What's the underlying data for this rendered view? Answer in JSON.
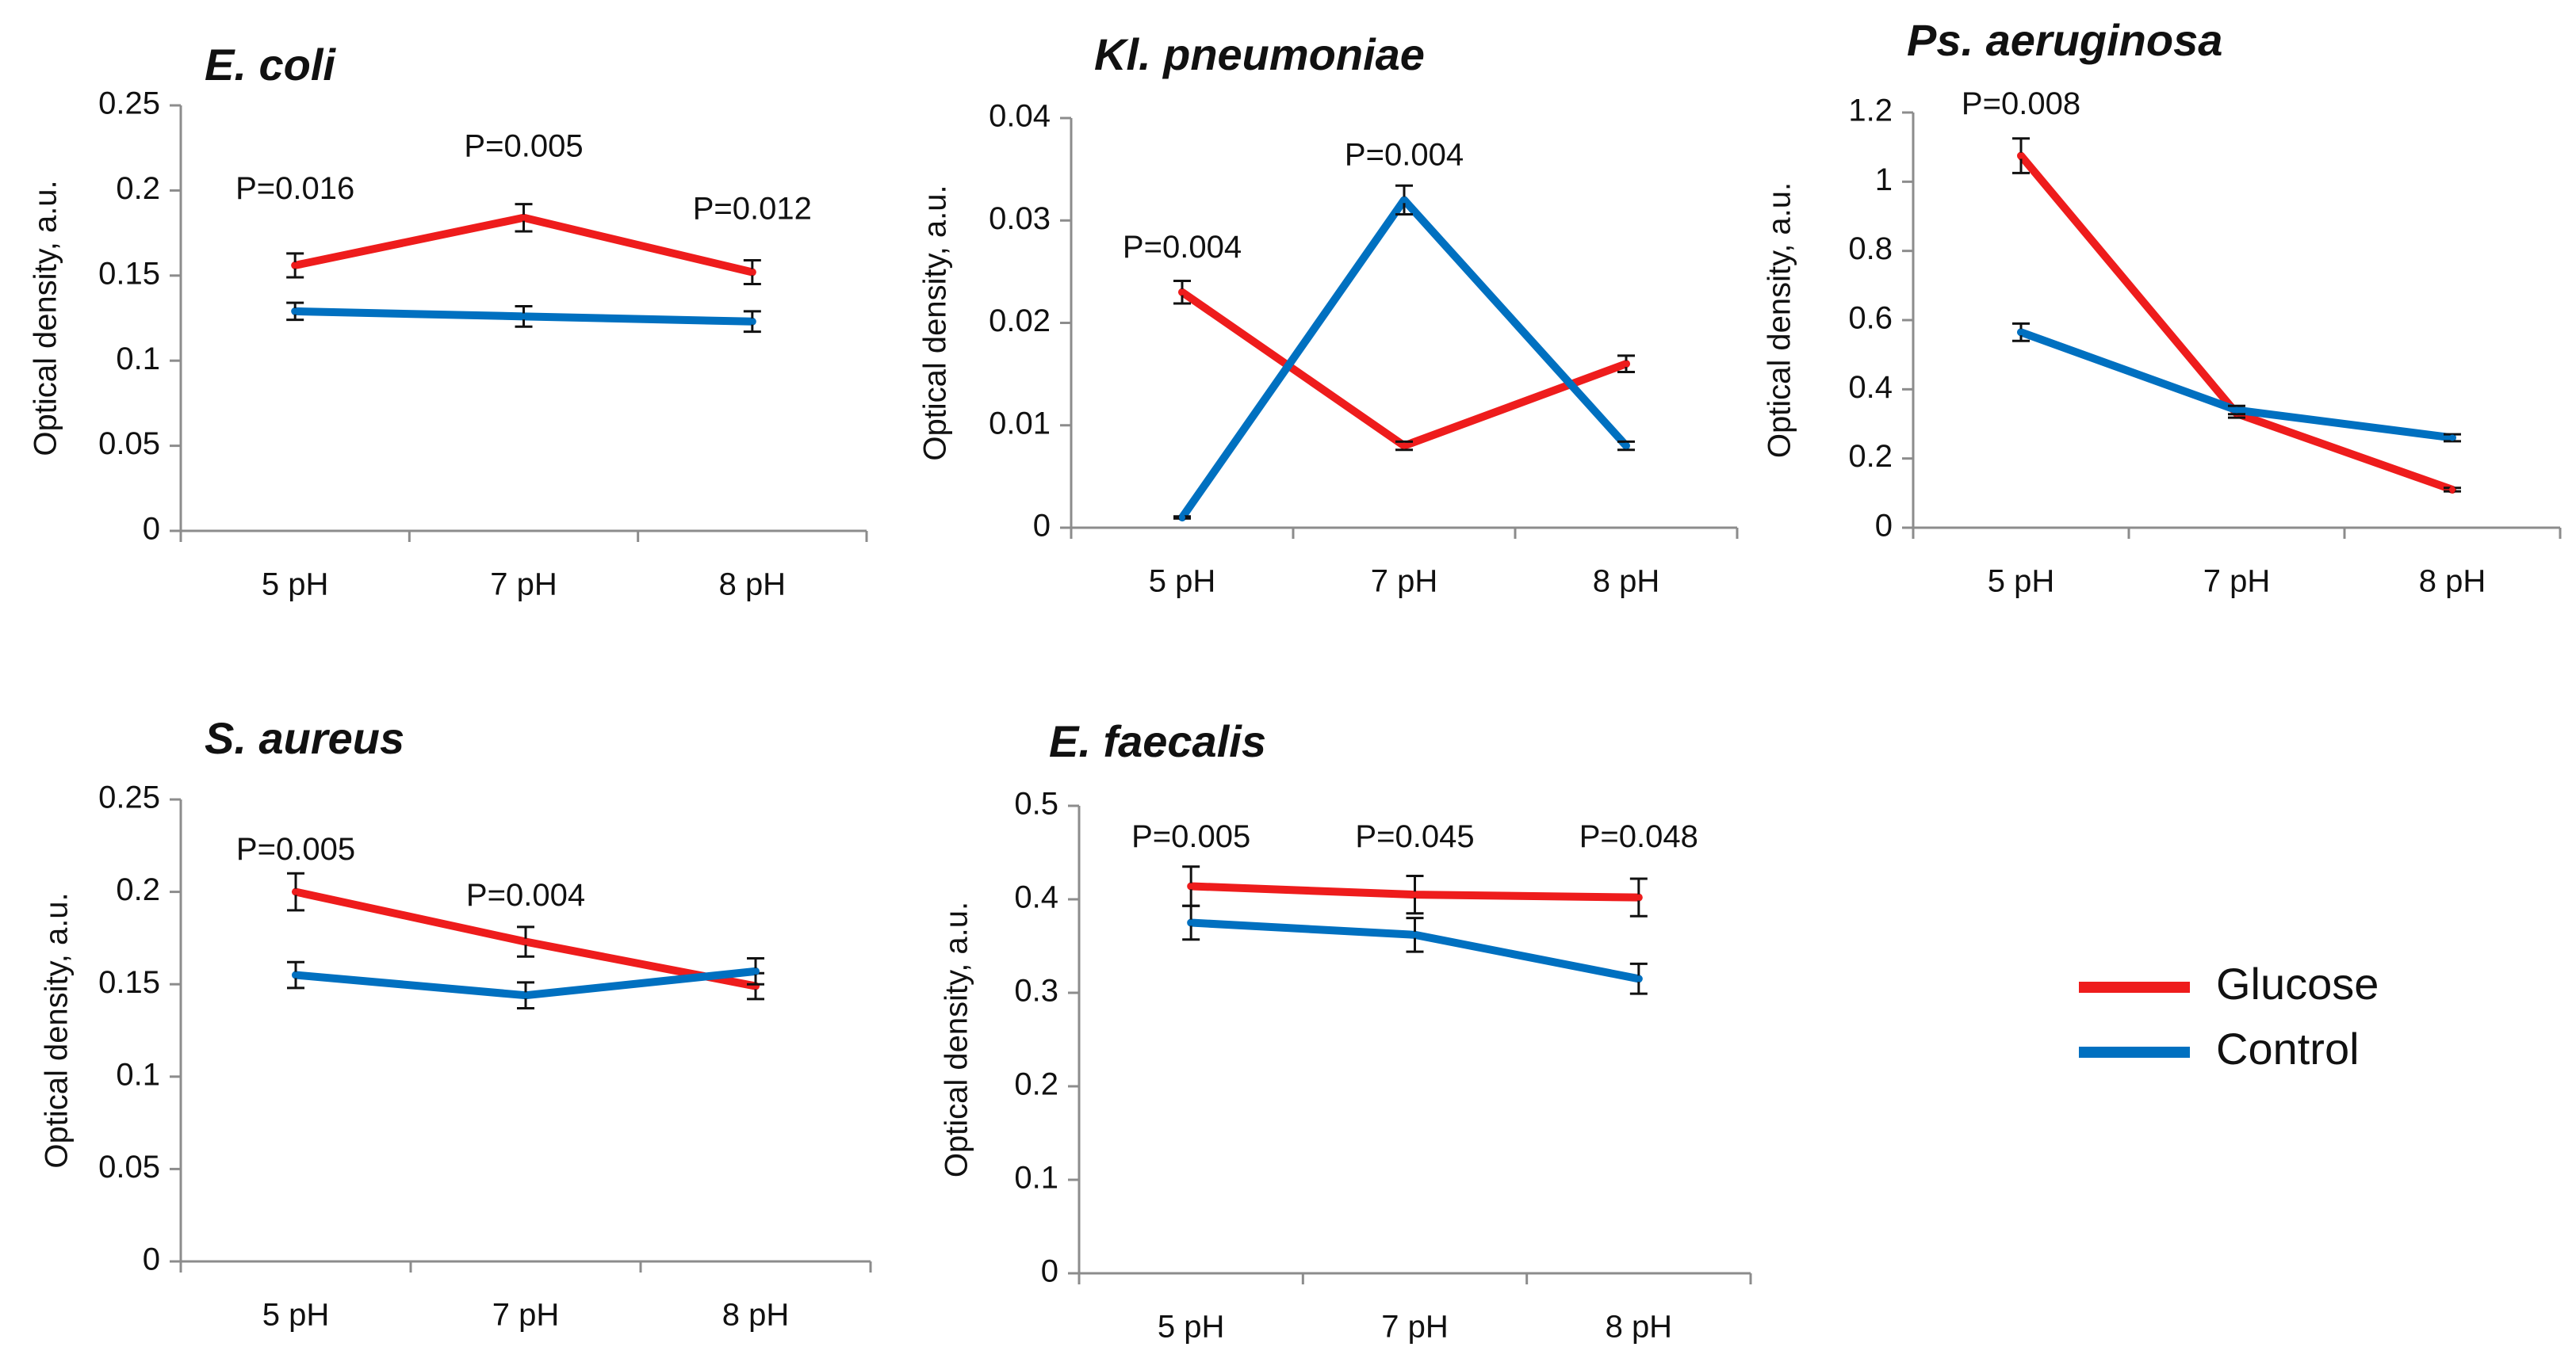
{
  "colors": {
    "glucose": "#ee1c1c",
    "control": "#0070c0",
    "axis": "#8c8c8c",
    "errorbar": "#111111"
  },
  "legend": {
    "glucose_label": "Glucose",
    "control_label": "Control"
  },
  "chart_data": [
    {
      "type": "line",
      "title": "E. coli",
      "ylabel": "Optical density, a.u.",
      "xlabel": "",
      "categories": [
        "5 pH",
        "7 pH",
        "8 pH"
      ],
      "ylim": [
        0,
        0.25
      ],
      "y_ticks": [
        "0",
        "0.05",
        "0.1",
        "0.15",
        "0.2",
        "0.25"
      ],
      "y_tick_values": [
        0,
        0.05,
        0.1,
        0.15,
        0.2,
        0.25
      ],
      "series": [
        {
          "name": "Glucose",
          "values": [
            0.156,
            0.184,
            0.152
          ],
          "errors": [
            0.007,
            0.008,
            0.007
          ]
        },
        {
          "name": "Control",
          "values": [
            0.129,
            0.126,
            0.123
          ],
          "errors": [
            0.005,
            0.006,
            0.006
          ]
        }
      ],
      "annotations": [
        {
          "text": "P=0.016",
          "category": 0,
          "y": 0.2
        },
        {
          "text": "P=0.005",
          "category": 1,
          "y": 0.225
        },
        {
          "text": "P=0.012",
          "category": 2,
          "y": 0.188
        }
      ]
    },
    {
      "type": "line",
      "title": "Kl. pneumoniae",
      "ylabel": "Optical density, a.u.",
      "xlabel": "",
      "categories": [
        "5 pH",
        "7 pH",
        "8 pH"
      ],
      "ylim": [
        0,
        0.04
      ],
      "y_ticks": [
        "0",
        "0.01",
        "0.02",
        "0.03",
        "0.04"
      ],
      "y_tick_values": [
        0,
        0.01,
        0.02,
        0.03,
        0.04
      ],
      "series": [
        {
          "name": "Glucose",
          "values": [
            0.023,
            0.008,
            0.016
          ],
          "errors": [
            0.0011,
            0.0004,
            0.0008
          ]
        },
        {
          "name": "Control",
          "values": [
            0.001,
            0.032,
            0.008
          ],
          "errors": [
            0.0001,
            0.0014,
            0.0004
          ]
        }
      ],
      "annotations": [
        {
          "text": "P=0.004",
          "category": 0,
          "y": 0.0272
        },
        {
          "text": "P=0.004",
          "category": 1,
          "y": 0.0362
        }
      ]
    },
    {
      "type": "line",
      "title": "Ps. aeruginosa",
      "ylabel": "Optical density, a.u.",
      "xlabel": "",
      "categories": [
        "5 pH",
        "7 pH",
        "8 pH"
      ],
      "ylim": [
        0,
        1.2
      ],
      "y_ticks": [
        "0",
        "0.2",
        "0.4",
        "0.6",
        "0.8",
        "1",
        "1.2"
      ],
      "y_tick_values": [
        0,
        0.2,
        0.4,
        0.6,
        0.8,
        1,
        1.2
      ],
      "series": [
        {
          "name": "Glucose",
          "values": [
            1.075,
            0.33,
            0.11
          ],
          "errors": [
            0.05,
            0.012,
            0.005
          ]
        },
        {
          "name": "Control",
          "values": [
            0.565,
            0.34,
            0.26
          ],
          "errors": [
            0.025,
            0.012,
            0.01
          ]
        }
      ],
      "annotations": [
        {
          "text": "P=0.008",
          "category": 0,
          "y": 1.22
        }
      ]
    },
    {
      "type": "line",
      "title": "S. aureus",
      "ylabel": "Optical density, a.u.",
      "xlabel": "",
      "categories": [
        "5 pH",
        "7 pH",
        "8 pH"
      ],
      "ylim": [
        0,
        0.25
      ],
      "y_ticks": [
        "0",
        "0.05",
        "0.1",
        "0.15",
        "0.2",
        "0.25"
      ],
      "y_tick_values": [
        0,
        0.05,
        0.1,
        0.15,
        0.2,
        0.25
      ],
      "series": [
        {
          "name": "Glucose",
          "values": [
            0.2,
            0.173,
            0.149
          ],
          "errors": [
            0.01,
            0.008,
            0.007
          ]
        },
        {
          "name": "Control",
          "values": [
            0.155,
            0.144,
            0.157
          ],
          "errors": [
            0.007,
            0.007,
            0.007
          ]
        }
      ],
      "annotations": [
        {
          "text": "P=0.005",
          "category": 0,
          "y": 0.222
        },
        {
          "text": "P=0.004",
          "category": 1,
          "y": 0.197
        }
      ]
    },
    {
      "type": "line",
      "title": "E. faecalis",
      "ylabel": "Optical density, a.u.",
      "xlabel": "",
      "categories": [
        "5 pH",
        "7 pH",
        "8 pH"
      ],
      "ylim": [
        0,
        0.5
      ],
      "y_ticks": [
        "0",
        "0.1",
        "0.2",
        "0.3",
        "0.4",
        "0.5"
      ],
      "y_tick_values": [
        0,
        0.1,
        0.2,
        0.3,
        0.4,
        0.5
      ],
      "series": [
        {
          "name": "Glucose",
          "values": [
            0.414,
            0.405,
            0.402
          ],
          "errors": [
            0.021,
            0.02,
            0.02
          ]
        },
        {
          "name": "Control",
          "values": [
            0.375,
            0.362,
            0.315
          ],
          "errors": [
            0.018,
            0.018,
            0.016
          ]
        }
      ],
      "annotations": [
        {
          "text": "P=0.005",
          "category": 0,
          "y": 0.465
        },
        {
          "text": "P=0.045",
          "category": 1,
          "y": 0.465
        },
        {
          "text": "P=0.048",
          "category": 2,
          "y": 0.465
        }
      ]
    }
  ]
}
